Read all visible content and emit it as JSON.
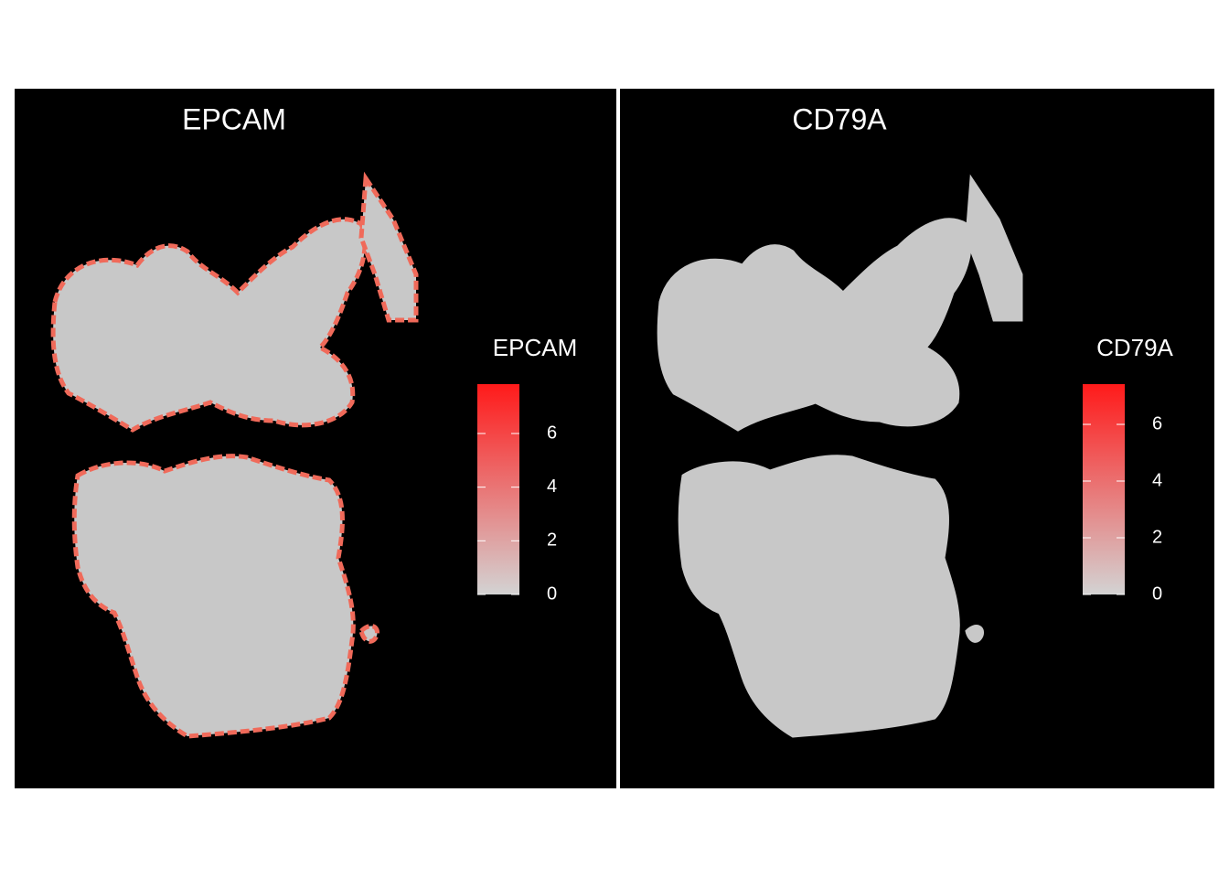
{
  "chart_data": [
    {
      "type": "scatter",
      "title": "EPCAM",
      "legend_title": "EPCAM",
      "clim": [
        0,
        7.84
      ],
      "cticks": [
        0,
        2,
        4,
        6
      ],
      "low_color": "#d3d3d3",
      "high_color": "#ff1a1a"
    },
    {
      "type": "scatter",
      "title": "CD79A",
      "legend_title": "CD79A",
      "clim": [
        0,
        7.42
      ],
      "cticks": [
        0,
        2,
        4,
        6
      ],
      "low_color": "#d3d3d3",
      "high_color": "#ff1a1a"
    }
  ]
}
